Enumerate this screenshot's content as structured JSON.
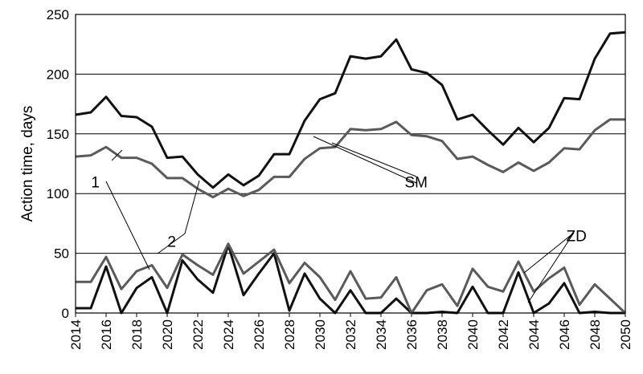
{
  "chart_data": {
    "type": "line",
    "title": "",
    "xlabel": "",
    "ylabel": "Action time, days",
    "ylim": [
      0,
      250
    ],
    "xlim": [
      2014,
      2050
    ],
    "yticks": [
      0,
      50,
      100,
      150,
      200,
      250
    ],
    "xticks": [
      2014,
      2016,
      2018,
      2020,
      2022,
      2024,
      2026,
      2028,
      2030,
      2032,
      2034,
      2036,
      2038,
      2040,
      2042,
      2044,
      2046,
      2048,
      2050
    ],
    "grid": "horizontal",
    "x": [
      2014,
      2015,
      2016,
      2017,
      2018,
      2019,
      2020,
      2021,
      2022,
      2023,
      2024,
      2025,
      2026,
      2027,
      2028,
      2029,
      2030,
      2031,
      2032,
      2033,
      2034,
      2035,
      2036,
      2037,
      2038,
      2039,
      2040,
      2041,
      2042,
      2043,
      2044,
      2045,
      2046,
      2047,
      2048,
      2049,
      2050
    ],
    "series": [
      {
        "group": "SM",
        "curve": "1",
        "color": "#111111",
        "values": [
          166,
          168,
          181,
          165,
          164,
          156,
          130,
          131,
          116,
          105,
          116,
          107,
          115,
          133,
          133,
          161,
          179,
          184,
          215,
          213,
          215,
          229,
          204,
          201,
          191,
          162,
          166,
          153,
          141,
          155,
          143,
          155,
          180,
          179,
          213,
          234,
          235
        ]
      },
      {
        "group": "SM",
        "curve": "2",
        "color": "#5a5a5a",
        "values": [
          131,
          132,
          139,
          130,
          130,
          125,
          113,
          113,
          104,
          97,
          104,
          98,
          103,
          114,
          114,
          129,
          138,
          139,
          154,
          153,
          154,
          160,
          149,
          148,
          144,
          129,
          131,
          124,
          118,
          126,
          119,
          126,
          138,
          137,
          153,
          162,
          162
        ]
      },
      {
        "group": "ZD",
        "curve": "1",
        "color": "#111111",
        "values": [
          4,
          4,
          39,
          0,
          21,
          30,
          0,
          44,
          28,
          17,
          57,
          15,
          33,
          50,
          2,
          33,
          12,
          0,
          19,
          0,
          0,
          12,
          0,
          0,
          1,
          0,
          22,
          0,
          0,
          34,
          0,
          8,
          25,
          0,
          1,
          0,
          0
        ]
      },
      {
        "group": "ZD",
        "curve": "2",
        "color": "#5a5a5a",
        "values": [
          26,
          26,
          47,
          20,
          35,
          40,
          21,
          49,
          40,
          32,
          58,
          33,
          43,
          53,
          25,
          42,
          30,
          11,
          35,
          12,
          13,
          30,
          0,
          19,
          24,
          6,
          37,
          22,
          18,
          43,
          18,
          29,
          38,
          7,
          24,
          12,
          0
        ]
      }
    ],
    "annotations": [
      {
        "text": "1",
        "x": 2015.3,
        "y": 110
      },
      {
        "text": "2",
        "x": 2020.3,
        "y": 60
      },
      {
        "text": "SM",
        "x": 2036.3,
        "y": 110
      },
      {
        "text": "ZD",
        "x": 2046.8,
        "y": 65
      }
    ]
  }
}
